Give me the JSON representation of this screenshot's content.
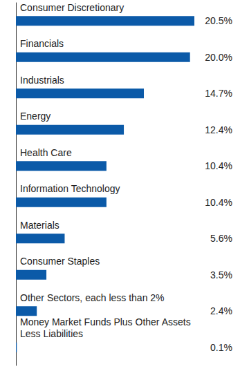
{
  "chart_data": {
    "type": "bar",
    "orientation": "horizontal",
    "categories": [
      "Consumer Discretionary",
      "Financials",
      "Industrials",
      "Energy",
      "Health Care",
      "Information Technology",
      "Materials",
      "Consumer Staples",
      "Other Sectors, each less than 2%",
      "Money Market Funds Plus Other Assets Less Liabilities"
    ],
    "values": [
      20.5,
      20.0,
      14.7,
      12.4,
      10.4,
      10.4,
      5.6,
      3.5,
      2.4,
      0.1
    ],
    "value_labels": [
      "20.5%",
      "20.0%",
      "14.7%",
      "12.4%",
      "10.4%",
      "10.4%",
      "5.6%",
      "3.5%",
      "2.4%",
      "0.1%"
    ],
    "data_labels": true,
    "color": "#0b5aa8",
    "xlim": [
      0,
      20.5
    ],
    "tick_labels": false,
    "grid": false
  }
}
